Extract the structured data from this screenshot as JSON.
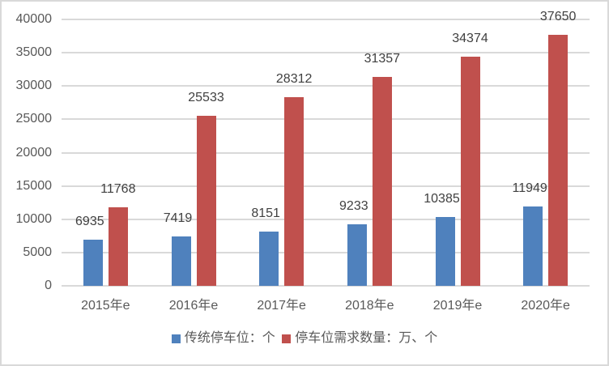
{
  "chart_data": {
    "type": "bar",
    "title": "",
    "xlabel": "",
    "ylabel": "",
    "categories": [
      "2015年e",
      "2016年e",
      "2017年e",
      "2018年e",
      "2019年e",
      "2020年e"
    ],
    "series": [
      {
        "name": "传统停车位：个",
        "color": "#4f81bd",
        "values": [
          6935,
          7419,
          8151,
          9233,
          10385,
          11949
        ]
      },
      {
        "name": "停车位需求数量：万、个",
        "color": "#c0504d",
        "values": [
          11768,
          25533,
          28312,
          31357,
          34374,
          37650
        ]
      }
    ],
    "ylim": [
      0,
      40000
    ],
    "yticks": [
      0,
      5000,
      10000,
      15000,
      20000,
      25000,
      30000,
      35000,
      40000
    ],
    "grid": true,
    "legend_position": "bottom",
    "data_labels": true
  },
  "legend": {
    "items": [
      {
        "label": "传统停车位：个",
        "color": "#4f81bd"
      },
      {
        "label": "停车位需求数量：万、个",
        "color": "#c0504d"
      }
    ]
  }
}
